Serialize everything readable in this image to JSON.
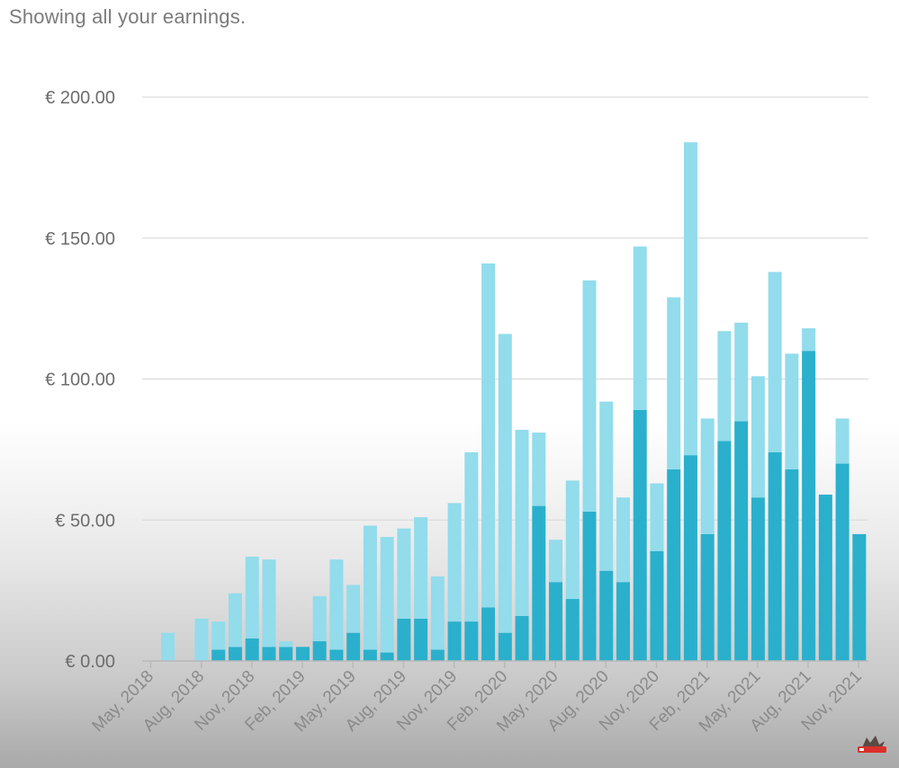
{
  "header": {
    "subtitle": "Showing all your earnings."
  },
  "colors": {
    "light": "#92DCEC",
    "dark": "#2AB0CC",
    "grid": "#DCDCDC"
  },
  "chart_data": {
    "type": "bar",
    "stacked": true,
    "ylim": [
      0,
      200
    ],
    "y_ticks": [
      0,
      50,
      100,
      150,
      200
    ],
    "y_tick_labels": [
      "€ 0.00",
      "€ 50.00",
      "€ 100.00",
      "€ 150.00",
      "€ 200.00"
    ],
    "x_tick_labels": [
      "May, 2018",
      "Aug, 2018",
      "Nov, 2018",
      "Feb, 2019",
      "May, 2019",
      "Aug, 2019",
      "Nov, 2019",
      "Feb, 2020",
      "May, 2020",
      "Aug, 2020",
      "Nov, 2020",
      "Feb, 2021",
      "May, 2021",
      "Aug, 2021",
      "Nov, 2021"
    ],
    "grid": true,
    "legend": "none",
    "categories": [
      "Jun 2018",
      "Jul 2018",
      "Aug 2018",
      "Sep 2018",
      "Oct 2018",
      "Nov 2018",
      "Dec 2018",
      "Jan 2019",
      "Feb 2019",
      "Mar 2019",
      "Apr 2019",
      "May 2019",
      "Jun 2019",
      "Jul 2019",
      "Aug 2019",
      "Sep 2019",
      "Oct 2019",
      "Nov 2019",
      "Dec 2019",
      "Jan 2020",
      "Feb 2020",
      "Mar 2020",
      "Apr 2020",
      "May 2020",
      "Jun 2020",
      "Jul 2020",
      "Aug 2020",
      "Sep 2020",
      "Oct 2020",
      "Nov 2020",
      "Dec 2020",
      "Jan 2021",
      "Feb 2021",
      "Mar 2021",
      "Apr 2021",
      "May 2021",
      "Jun 2021",
      "Jul 2021",
      "Aug 2021",
      "Sep 2021",
      "Oct 2021",
      "Nov 2021"
    ],
    "series": [
      {
        "values": [
          0,
          0,
          0,
          4,
          5,
          8,
          5,
          5,
          5,
          7,
          4,
          10,
          4,
          3,
          15,
          15,
          4,
          14,
          14,
          19,
          10,
          16,
          55,
          28,
          22,
          53,
          32,
          28,
          89,
          39,
          68,
          73,
          45,
          78,
          85,
          58,
          74,
          68,
          110,
          59,
          70,
          45
        ]
      },
      {
        "values": [
          10,
          0,
          15,
          10,
          19,
          29,
          31,
          2,
          0,
          16,
          32,
          17,
          44,
          41,
          32,
          36,
          26,
          42,
          60,
          122,
          106,
          66,
          26,
          15,
          42,
          82,
          60,
          30,
          58,
          24,
          61,
          111,
          41,
          39,
          35,
          43,
          64,
          41,
          8,
          0,
          16,
          0
        ]
      }
    ]
  }
}
